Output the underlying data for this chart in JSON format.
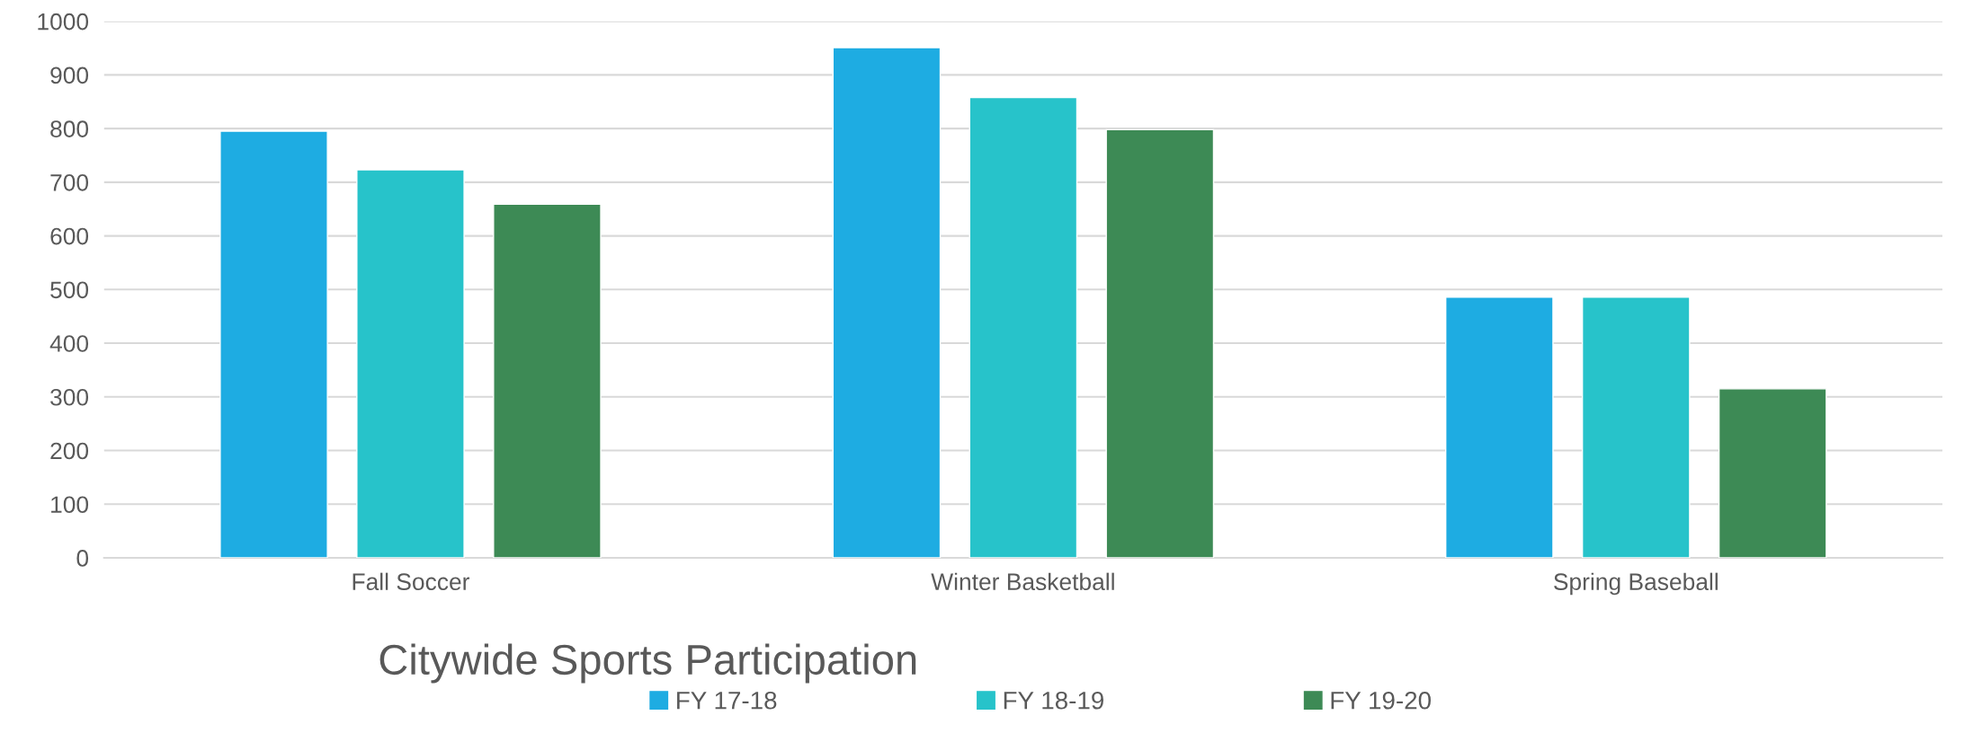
{
  "chart_data": {
    "type": "bar",
    "title": "Citywide Sports Participation",
    "categories": [
      "Fall Soccer",
      "Winter Basketball",
      "Spring Baseball"
    ],
    "series": [
      {
        "name": "FY 17-18",
        "color": "#1eace2",
        "values": [
          795,
          951,
          486
        ]
      },
      {
        "name": "FY 18-19",
        "color": "#27c3ca",
        "values": [
          723,
          858,
          486
        ]
      },
      {
        "name": "FY 19-20",
        "color": "#3d8a55",
        "values": [
          659,
          798,
          315
        ]
      }
    ],
    "ylim": [
      0,
      1000
    ],
    "yticks": [
      0,
      100,
      200,
      300,
      400,
      500,
      600,
      700,
      800,
      900,
      1000
    ],
    "grid": "y",
    "legend": "bottom"
  }
}
